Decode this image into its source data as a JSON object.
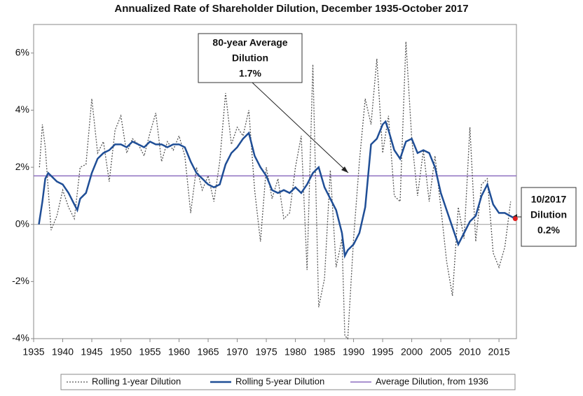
{
  "chart_data": {
    "type": "line",
    "title": "Annualized Rate of Shareholder Dilution, December 1935-October 2017",
    "xlim": [
      1935,
      2018
    ],
    "xticks": [
      1935,
      1940,
      1945,
      1950,
      1955,
      1960,
      1965,
      1970,
      1975,
      1980,
      1985,
      1990,
      1995,
      2000,
      2005,
      2010,
      2015
    ],
    "ylim": [
      -4,
      7
    ],
    "yticks": [
      {
        "value": -4,
        "label": "-4%"
      },
      {
        "value": -2,
        "label": "-2%"
      },
      {
        "value": 0,
        "label": "0%"
      },
      {
        "value": 2,
        "label": "2%"
      },
      {
        "value": 4,
        "label": "4%"
      },
      {
        "value": 6,
        "label": "6%"
      }
    ],
    "series": [
      {
        "name": "Rolling 1-year Dilution",
        "color": "#555555",
        "dashed": true,
        "x": [
          1936,
          1936.5,
          1937,
          1938,
          1939,
          1940,
          1941,
          1942,
          1943,
          1944,
          1945,
          1946,
          1947,
          1948,
          1949,
          1950,
          1951,
          1952,
          1953,
          1954,
          1955,
          1956,
          1957,
          1958,
          1959,
          1960,
          1961,
          1962,
          1963,
          1964,
          1965,
          1966,
          1967,
          1968,
          1969,
          1970,
          1971,
          1972,
          1973,
          1974,
          1975,
          1976,
          1977,
          1978,
          1979,
          1980,
          1981,
          1982,
          1983,
          1984,
          1985,
          1986,
          1987,
          1988,
          1988.5,
          1989,
          1990,
          1991,
          1992,
          1993,
          1994,
          1995,
          1996,
          1997,
          1998,
          1999,
          2000,
          2001,
          2002,
          2003,
          2004,
          2005,
          2006,
          2007,
          2008,
          2009,
          2010,
          2011,
          2012,
          2013,
          2014,
          2015,
          2016,
          2017
        ],
        "values": [
          2.0,
          3.5,
          2.7,
          -0.2,
          0.3,
          1.2,
          0.6,
          0.2,
          2.0,
          2.1,
          4.4,
          2.5,
          2.9,
          1.5,
          3.3,
          3.8,
          2.5,
          3.0,
          2.8,
          2.4,
          3.2,
          3.9,
          2.2,
          2.9,
          2.6,
          3.1,
          2.4,
          0.4,
          2.0,
          1.2,
          1.7,
          0.8,
          2.2,
          4.6,
          2.8,
          3.4,
          3.1,
          4.0,
          1.2,
          -0.6,
          2.0,
          0.9,
          1.6,
          0.2,
          0.4,
          2.0,
          3.1,
          -1.6,
          5.6,
          -2.9,
          -1.9,
          1.9,
          -1.5,
          -0.5,
          -3.9,
          -4.0,
          -0.5,
          2.2,
          4.4,
          3.5,
          5.8,
          2.5,
          3.8,
          1.0,
          0.8,
          6.4,
          3.0,
          1.0,
          2.6,
          0.8,
          2.4,
          0.6,
          -1.3,
          -2.5,
          0.6,
          -0.5,
          3.4,
          -0.6,
          1.4,
          1.6,
          -1.0,
          -1.5,
          -0.8,
          0.8
        ]
      },
      {
        "name": "Rolling 5-year Dilution",
        "color": "#1f4e96",
        "dashed": false,
        "x": [
          1935.9,
          1936.5,
          1937,
          1937.5,
          1938,
          1939,
          1940,
          1941,
          1942,
          1942.5,
          1943,
          1944,
          1945,
          1946,
          1947,
          1948,
          1949,
          1950,
          1951,
          1952,
          1953,
          1954,
          1955,
          1956,
          1957,
          1958,
          1959,
          1960,
          1961,
          1962,
          1963,
          1964,
          1965,
          1966,
          1967,
          1968,
          1969,
          1970,
          1971,
          1972,
          1973,
          1974,
          1975,
          1976,
          1977,
          1978,
          1979,
          1980,
          1981,
          1982,
          1983,
          1984,
          1985,
          1986,
          1987,
          1988,
          1988.5,
          1989,
          1990,
          1991,
          1992,
          1993,
          1994,
          1995,
          1995.5,
          1996,
          1997,
          1998,
          1999,
          2000,
          2001,
          2002,
          2003,
          2004,
          2005,
          2006,
          2007,
          2008,
          2009,
          2010,
          2011,
          2012,
          2013,
          2014,
          2015,
          2016,
          2017.8
        ],
        "values": [
          0.0,
          0.8,
          1.6,
          1.8,
          1.7,
          1.5,
          1.4,
          1.1,
          0.7,
          0.5,
          0.9,
          1.1,
          1.8,
          2.3,
          2.5,
          2.6,
          2.8,
          2.8,
          2.7,
          2.9,
          2.8,
          2.7,
          2.9,
          2.8,
          2.8,
          2.7,
          2.8,
          2.8,
          2.7,
          2.2,
          1.8,
          1.6,
          1.4,
          1.3,
          1.4,
          2.1,
          2.5,
          2.7,
          3.0,
          3.2,
          2.4,
          2.0,
          1.7,
          1.2,
          1.1,
          1.2,
          1.1,
          1.3,
          1.1,
          1.4,
          1.8,
          2.0,
          1.3,
          0.9,
          0.5,
          -0.3,
          -1.1,
          -0.9,
          -0.7,
          -0.3,
          0.6,
          2.8,
          3.0,
          3.5,
          3.6,
          3.3,
          2.6,
          2.3,
          2.9,
          3.0,
          2.5,
          2.6,
          2.5,
          2.0,
          1.1,
          0.5,
          -0.1,
          -0.7,
          -0.3,
          0.1,
          0.3,
          1.0,
          1.4,
          0.7,
          0.4,
          0.4,
          0.2
        ]
      }
    ],
    "average": {
      "name": "Average Dilution, from 1936",
      "value": 1.7,
      "color": "#8e6fc0"
    },
    "annotations": [
      [
        "80-year Average",
        "Dilution",
        "1.7%"
      ],
      [
        "10/2017",
        "Dilution",
        "0.2%"
      ]
    ],
    "marker_color": "#e02020"
  }
}
